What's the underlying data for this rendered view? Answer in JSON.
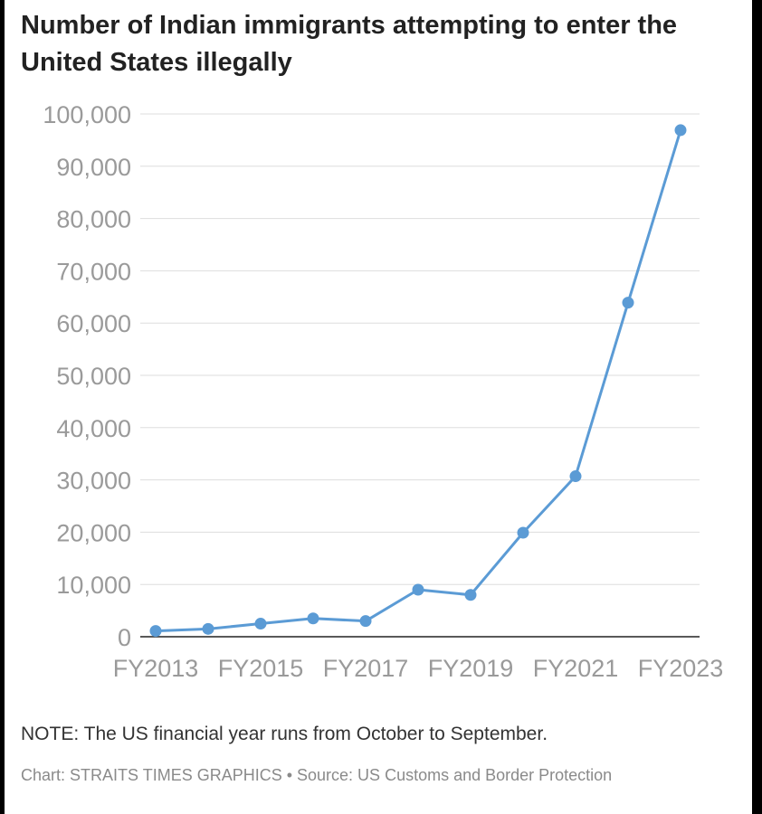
{
  "chart_data": {
    "type": "line",
    "title": "Number of Indian immigrants attempting to enter the United States illegally",
    "xlabel": "",
    "ylabel": "",
    "x": [
      "FY2013",
      "FY2014",
      "FY2015",
      "FY2016",
      "FY2017",
      "FY2018",
      "FY2019",
      "FY2020",
      "FY2021",
      "FY2022",
      "FY2023"
    ],
    "x_tick_labels": [
      "FY2013",
      "FY2015",
      "FY2017",
      "FY2019",
      "FY2021",
      "FY2023"
    ],
    "y_tick_labels": [
      "0",
      "10,000",
      "20,000",
      "30,000",
      "40,000",
      "50,000",
      "60,000",
      "70,000",
      "80,000",
      "90,000",
      "100,000"
    ],
    "ylim": [
      0,
      100000
    ],
    "series": [
      {
        "values": [
          1100,
          1500,
          2500,
          3500,
          3000,
          9000,
          8000,
          19900,
          30700,
          63900,
          96900
        ]
      }
    ],
    "grid": true,
    "legend": "none",
    "line_color": "#5b9bd5"
  },
  "note": "NOTE: The US financial year runs from October to September.",
  "credit": "Chart: STRAITS TIMES GRAPHICS • Source: US Customs and Border Protection"
}
